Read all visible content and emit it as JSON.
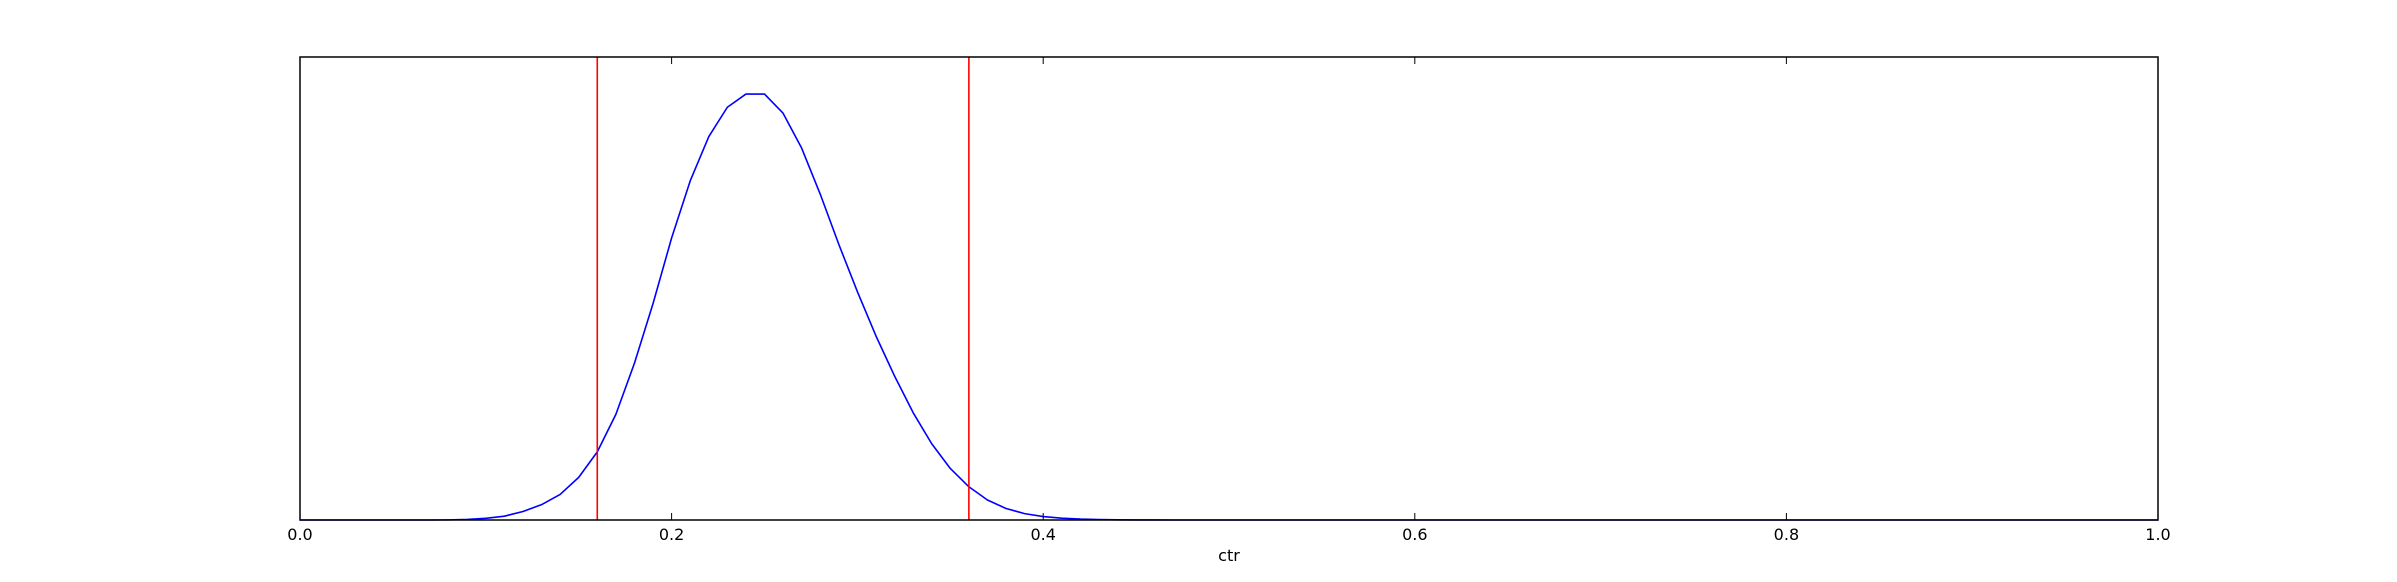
{
  "chart_data": {
    "type": "line",
    "title": "",
    "xlabel": "ctr",
    "ylabel": "",
    "xlim": [
      0.0,
      1.0
    ],
    "ylim": [
      0,
      1.0
    ],
    "grid": false,
    "x_ticks": [
      {
        "value": 0.0,
        "label": "0.0"
      },
      {
        "value": 0.2,
        "label": "0.2"
      },
      {
        "value": 0.4,
        "label": "0.4"
      },
      {
        "value": 0.6,
        "label": "0.6"
      },
      {
        "value": 0.8,
        "label": "0.8"
      },
      {
        "value": 1.0,
        "label": "1.0"
      }
    ],
    "y_ticks_shown": false,
    "series": [
      {
        "color": "#0000ff",
        "x": [
          0.0,
          0.01,
          0.02,
          0.03,
          0.04,
          0.05,
          0.06,
          0.07,
          0.08,
          0.09,
          0.1,
          0.11,
          0.12,
          0.13,
          0.14,
          0.15,
          0.16,
          0.17,
          0.18,
          0.19,
          0.2,
          0.21,
          0.22,
          0.23,
          0.24,
          0.25,
          0.26,
          0.27,
          0.28,
          0.29,
          0.3,
          0.31,
          0.32,
          0.33,
          0.34,
          0.35,
          0.36,
          0.37,
          0.38,
          0.39,
          0.4,
          0.41,
          0.42,
          0.43,
          0.44,
          0.45,
          0.46,
          0.47,
          0.48,
          0.5,
          0.55,
          0.6,
          0.7,
          0.8,
          0.9,
          1.0
        ],
        "y": [
          0.0,
          0.0,
          0.0,
          0.0,
          0.0,
          0.0,
          0.0,
          0.0,
          0.0003,
          0.0013,
          0.004,
          0.009,
          0.02,
          0.036,
          0.06,
          0.1,
          0.16,
          0.248,
          0.368,
          0.508,
          0.662,
          0.796,
          0.9,
          0.969,
          1.0,
          1.0,
          0.955,
          0.873,
          0.765,
          0.647,
          0.536,
          0.432,
          0.338,
          0.252,
          0.179,
          0.121,
          0.078,
          0.047,
          0.027,
          0.015,
          0.0081,
          0.0043,
          0.0022,
          0.0011,
          0.0005,
          0.0002,
          0.0001,
          0.0,
          0.0,
          0.0,
          0.0,
          0.0,
          0.0,
          0.0,
          0.0,
          0.0
        ]
      }
    ],
    "vlines": [
      {
        "x": 0.16,
        "color": "#ff0000"
      },
      {
        "x": 0.36,
        "color": "#ff0000"
      }
    ]
  }
}
